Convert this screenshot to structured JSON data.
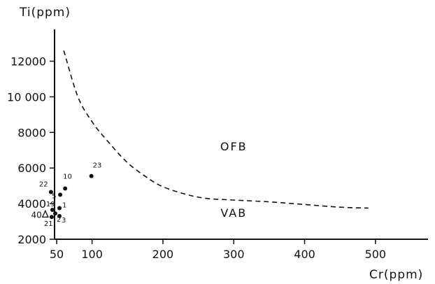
{
  "chart_data": {
    "type": "scatter",
    "xlabel": "Cr(ppm)",
    "ylabel": "Ti(ppm)",
    "xlim": [
      0,
      520
    ],
    "ylim": [
      2000,
      14000
    ],
    "xticks": [
      50,
      100,
      200,
      300,
      400,
      500
    ],
    "xtick_labels": [
      "50",
      "100",
      "200",
      "300",
      "400",
      "500"
    ],
    "yticks": [
      2000,
      4000,
      6000,
      8000,
      10000,
      12000
    ],
    "ytick_labels": [
      "2000",
      "4000",
      "6000",
      "8000",
      "10 000",
      "12000"
    ],
    "grid": false,
    "points": [
      {
        "label": "22",
        "x": 42,
        "y": 4650,
        "marker": "dot"
      },
      {
        "label": "10",
        "x": 62,
        "y": 4850,
        "marker": "dot"
      },
      {
        "label": "5",
        "x": 55,
        "y": 4500,
        "marker": "dot"
      },
      {
        "label": "23",
        "x": 99,
        "y": 5550,
        "marker": "dot"
      },
      {
        "label": "19",
        "x": 44,
        "y": 3650,
        "marker": "dot"
      },
      {
        "label": "1",
        "x": 54,
        "y": 3750,
        "marker": "dot"
      },
      {
        "label": "2",
        "x": 48,
        "y": 3450,
        "marker": "dot"
      },
      {
        "label": "21",
        "x": 43,
        "y": 3250,
        "marker": "dot"
      },
      {
        "label": "3",
        "x": 54,
        "y": 3300,
        "marker": "dot"
      },
      {
        "label": "40",
        "x": 34,
        "y": 3400,
        "marker": "triangle"
      }
    ],
    "boundary": {
      "style": "dashed",
      "points": [
        [
          60,
          12600
        ],
        [
          80,
          10000
        ],
        [
          100,
          8600
        ],
        [
          120,
          7600
        ],
        [
          150,
          6300
        ],
        [
          180,
          5400
        ],
        [
          200,
          4950
        ],
        [
          230,
          4550
        ],
        [
          260,
          4300
        ],
        [
          300,
          4200
        ],
        [
          350,
          4100
        ],
        [
          400,
          3950
        ],
        [
          450,
          3800
        ],
        [
          490,
          3750
        ]
      ]
    },
    "regions": [
      {
        "label": "OFB",
        "x": 300,
        "y": 7000
      },
      {
        "label": "VAB",
        "x": 300,
        "y": 3250
      }
    ]
  },
  "colors": {
    "ink": "#111111",
    "background": "#ffffff"
  }
}
